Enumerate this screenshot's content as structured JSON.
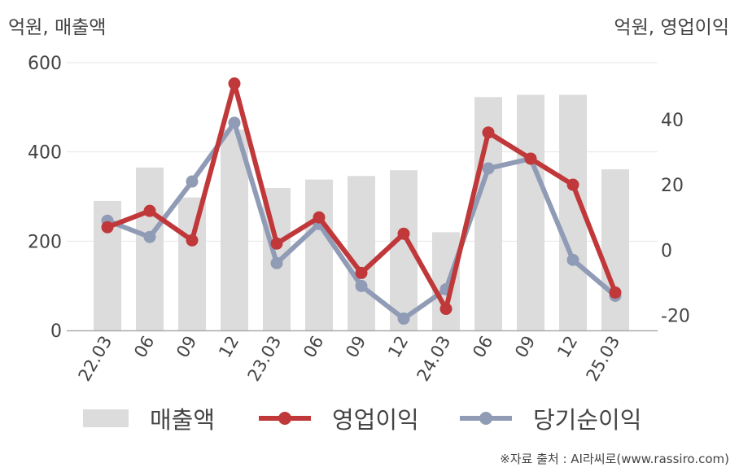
{
  "units": {
    "left": "억원, 매출액",
    "right": "억원, 영업이익"
  },
  "legend": {
    "revenue": "매출액",
    "operating_profit": "영업이익",
    "net_profit": "당기순이익"
  },
  "source": "※자료 출처 : AI라씨로(www.rassiro.com)",
  "colors": {
    "revenue": "#dcdcdc",
    "operating_profit": "#c0383a",
    "net_profit": "#909cb6",
    "axis": "#aaaaaa",
    "grid": "#e6e6e6"
  },
  "chart_data": {
    "type": "bar+line",
    "categories": [
      "22.03",
      "06",
      "09",
      "12",
      "23.03",
      "06",
      "09",
      "12",
      "24.03",
      "06",
      "09",
      "12",
      "25.03"
    ],
    "left_axis": {
      "ticks": [
        0,
        200,
        400,
        600
      ],
      "range": [
        0,
        600
      ]
    },
    "right_axis": {
      "ticks": [
        -20,
        0,
        20,
        40
      ],
      "range": [
        -24.6,
        57.4
      ]
    },
    "series": [
      {
        "name": "매출액",
        "type": "bar",
        "axis": "left",
        "values": [
          290,
          365,
          298,
          450,
          319,
          338,
          346,
          359,
          220,
          523,
          528,
          528,
          361
        ]
      },
      {
        "name": "영업이익",
        "type": "line",
        "axis": "right",
        "values": [
          7,
          12,
          3,
          51,
          2,
          10,
          -7,
          5,
          -18,
          36,
          28,
          20,
          -13
        ]
      },
      {
        "name": "당기순이익",
        "type": "line",
        "axis": "right",
        "values": [
          9,
          4,
          21,
          39,
          -4,
          8,
          -11,
          -21,
          -12,
          25,
          28,
          -3,
          -14
        ]
      }
    ],
    "grid": true,
    "legend_position": "bottom"
  }
}
